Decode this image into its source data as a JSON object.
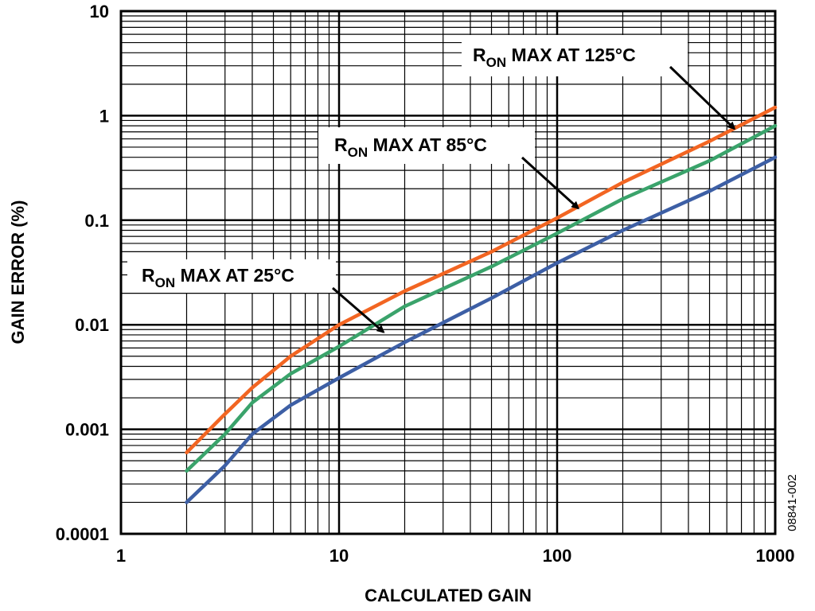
{
  "figure_id": "08841-002",
  "chart_data": {
    "type": "line",
    "xlabel": "CALCULATED GAIN",
    "ylabel": "GAIN ERROR (%)",
    "xscale": "log",
    "yscale": "log",
    "xlim": [
      1,
      1000
    ],
    "ylim": [
      0.0001,
      10
    ],
    "grid": true,
    "x_tick_labels": [
      "1",
      "10",
      "100",
      "1000"
    ],
    "y_tick_labels": [
      "0.0001",
      "0.001",
      "0.01",
      "0.1",
      "1",
      "10"
    ],
    "series": [
      {
        "color": "#f26522",
        "x": [
          2,
          3,
          4,
          6,
          10,
          20,
          50,
          100,
          200,
          500,
          1000
        ],
        "y": [
          0.0006,
          0.0014,
          0.0025,
          0.005,
          0.01,
          0.021,
          0.05,
          0.105,
          0.23,
          0.57,
          1.2
        ]
      },
      {
        "color": "#3aa36b",
        "x": [
          2,
          3,
          4,
          6,
          10,
          20,
          50,
          100,
          200,
          500,
          1000
        ],
        "y": [
          0.0004,
          0.0009,
          0.0018,
          0.0034,
          0.0062,
          0.015,
          0.036,
          0.075,
          0.16,
          0.37,
          0.8
        ]
      },
      {
        "color": "#3d5fa5",
        "x": [
          2,
          3,
          4,
          6,
          10,
          20,
          50,
          100,
          200,
          500,
          1000
        ],
        "y": [
          0.0002,
          0.00045,
          0.0009,
          0.0017,
          0.0031,
          0.0068,
          0.018,
          0.039,
          0.08,
          0.19,
          0.4
        ]
      }
    ],
    "annotations": [
      {
        "main": "R",
        "sub": "ON",
        "rest": " MAX AT 125°C",
        "target_x": 650,
        "target_y": 0.75
      },
      {
        "main": "R",
        "sub": "ON",
        "rest": " MAX AT 85°C",
        "target_x": 125,
        "target_y": 0.13
      },
      {
        "main": "R",
        "sub": "ON",
        "rest": " MAX AT 25°C",
        "target_x": 16,
        "target_y": 0.0085
      }
    ]
  }
}
